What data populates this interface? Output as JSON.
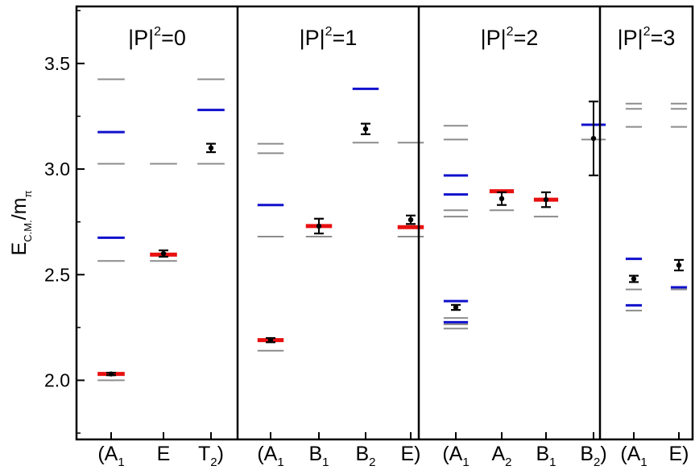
{
  "chart_data": {
    "type": "scatter",
    "ylabel": {
      "main": "E",
      "sub": "C.M.",
      "mid": "/m",
      "sub2": "π"
    },
    "ylim": [
      1.72,
      3.77
    ],
    "yticks": [
      2.0,
      2.5,
      3.0,
      3.5
    ],
    "ytick_labels": [
      "2.0",
      "2.5",
      "3.0",
      "3.5"
    ],
    "panels": [
      {
        "title": {
          "pre": "|P|",
          "sup": "2",
          "post": "=0"
        },
        "columns": [
          {
            "label": {
              "open": "(",
              "main": "A",
              "sub": "1",
              "close": ""
            }
          },
          {
            "label": {
              "open": "",
              "main": "E",
              "sub": "",
              "close": ""
            }
          },
          {
            "label": {
              "open": "",
              "main": "T",
              "sub": "2",
              "close": ")"
            }
          }
        ],
        "gray": [
          [
            0,
            2.0
          ],
          [
            0,
            2.565
          ],
          [
            0,
            3.025
          ],
          [
            0,
            3.425
          ],
          [
            1,
            2.565
          ],
          [
            1,
            3.025
          ],
          [
            2,
            3.025
          ],
          [
            2,
            3.425
          ]
        ],
        "blue": [
          [
            0,
            2.675
          ],
          [
            0,
            3.175
          ],
          [
            2,
            3.28
          ]
        ],
        "red": [
          [
            0,
            2.03
          ],
          [
            1,
            2.595
          ]
        ],
        "points": [
          {
            "col": 0,
            "y": 2.03,
            "err": 0.006
          },
          {
            "col": 1,
            "y": 2.6,
            "err": 0.015
          },
          {
            "col": 2,
            "y": 3.1,
            "err": 0.02
          }
        ]
      },
      {
        "title": {
          "pre": "|P|",
          "sup": "2",
          "post": "=1"
        },
        "columns": [
          {
            "label": {
              "open": "(",
              "main": "A",
              "sub": "1",
              "close": ""
            }
          },
          {
            "label": {
              "open": "",
              "main": "B",
              "sub": "1",
              "close": ""
            }
          },
          {
            "label": {
              "open": "",
              "main": "B",
              "sub": "2",
              "close": ""
            }
          },
          {
            "label": {
              "open": "",
              "main": "E",
              "sub": "",
              "close": ")"
            }
          }
        ],
        "gray": [
          [
            0,
            2.14
          ],
          [
            0,
            2.68
          ],
          [
            0,
            3.075
          ],
          [
            0,
            3.12
          ],
          [
            1,
            2.68
          ],
          [
            2,
            3.125
          ],
          [
            3,
            2.68
          ],
          [
            3,
            3.125
          ]
        ],
        "blue": [
          [
            0,
            2.83
          ],
          [
            2,
            3.38
          ]
        ],
        "red": [
          [
            0,
            2.19
          ],
          [
            1,
            2.73
          ],
          [
            3,
            2.725
          ]
        ],
        "points": [
          {
            "col": 0,
            "y": 2.19,
            "err": 0.01
          },
          {
            "col": 1,
            "y": 2.73,
            "err": 0.035
          },
          {
            "col": 2,
            "y": 3.19,
            "err": 0.025
          },
          {
            "col": 3,
            "y": 2.76,
            "err": 0.02
          }
        ]
      },
      {
        "title": {
          "pre": "|P|",
          "sup": "2",
          "post": "=2"
        },
        "columns": [
          {
            "label": {
              "open": "(",
              "main": "A",
              "sub": "1",
              "close": ""
            }
          },
          {
            "label": {
              "open": "",
              "main": "A",
              "sub": "2",
              "close": ""
            }
          },
          {
            "label": {
              "open": "",
              "main": "B",
              "sub": "1",
              "close": ""
            }
          },
          {
            "label": {
              "open": "",
              "main": "B",
              "sub": "2",
              "close": ")"
            }
          }
        ],
        "gray": [
          [
            0,
            2.245
          ],
          [
            0,
            2.265
          ],
          [
            0,
            2.295
          ],
          [
            0,
            2.775
          ],
          [
            0,
            2.805
          ],
          [
            0,
            3.14
          ],
          [
            0,
            3.205
          ],
          [
            1,
            2.805
          ],
          [
            2,
            2.775
          ],
          [
            3,
            3.14
          ]
        ],
        "blue": [
          [
            0,
            2.275
          ],
          [
            0,
            2.375
          ],
          [
            0,
            2.88
          ],
          [
            0,
            2.97
          ],
          [
            3,
            3.21
          ]
        ],
        "red": [
          [
            1,
            2.895
          ],
          [
            2,
            2.855
          ]
        ],
        "points": [
          {
            "col": 0,
            "y": 2.345,
            "err": 0.012
          },
          {
            "col": 1,
            "y": 2.86,
            "err": 0.03
          },
          {
            "col": 2,
            "y": 2.855,
            "err": 0.035
          },
          {
            "col": 3,
            "y": 3.145,
            "err": 0.175
          }
        ]
      },
      {
        "title": {
          "pre": "|P|",
          "sup": "2",
          "post": "=3"
        },
        "columns": [
          {
            "label": {
              "open": "(",
              "main": "A",
              "sub": "1",
              "close": ""
            }
          },
          {
            "label": {
              "open": "",
              "main": "E",
              "sub": "",
              "close": ")"
            }
          }
        ],
        "gray": [
          [
            0,
            2.33
          ],
          [
            0,
            2.43
          ],
          [
            0,
            3.2
          ],
          [
            0,
            3.285
          ],
          [
            0,
            3.31
          ],
          [
            1,
            2.43
          ],
          [
            1,
            3.2
          ],
          [
            1,
            3.285
          ],
          [
            1,
            3.31
          ]
        ],
        "blue": [
          [
            0,
            2.355
          ],
          [
            0,
            2.575
          ],
          [
            1,
            2.44
          ]
        ],
        "red": [],
        "points": [
          {
            "col": 0,
            "y": 2.48,
            "err": 0.015
          },
          {
            "col": 1,
            "y": 2.545,
            "err": 0.025
          }
        ]
      }
    ],
    "colors": {
      "gray": "#8c8c8c",
      "blue": "#1010cc",
      "red": "#e81010",
      "point": "#000000",
      "frame": "#000000"
    }
  }
}
